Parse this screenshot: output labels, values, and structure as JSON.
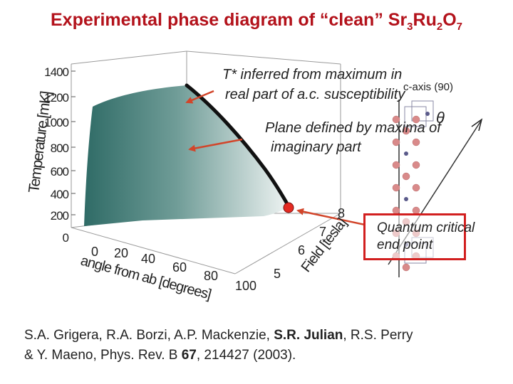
{
  "title": {
    "main": "Experimental phase diagram of “clean” Sr",
    "sub1": "3",
    "mid": "Ru",
    "sub2": "2",
    "mid2": "O",
    "sub3": "7"
  },
  "axes": {
    "temperature_label": "Temperature [mK]",
    "temperature_ticks": [
      "1400",
      "1200",
      "1000",
      "800",
      "600",
      "400",
      "200",
      "0"
    ],
    "angle_label": "angle from ab [degrees]",
    "angle_ticks": [
      "0",
      "20",
      "40",
      "60",
      "80",
      "100"
    ],
    "field_label": "Field [tesla]",
    "field_ticks": [
      "5",
      "6",
      "7",
      "8"
    ]
  },
  "annotations": {
    "tstar_line1": "T* inferred from maximum in",
    "tstar_line2": "real part of a.c. susceptibility",
    "plane_line1": "Plane defined by maxima of",
    "plane_line2": "imaginary part",
    "caxis": "c-axis (90)",
    "theta": "θ",
    "qcp_line1": "Quantum critical",
    "qcp_line2": "end point"
  },
  "citation": {
    "authors_a": "S.A. Grigera, R.A. Borzi, A.P. Mackenzie, ",
    "authors_bold": "S.R. Julian",
    "authors_b": ", R.S. Perry",
    "line2_a": "& Y. Maeno, Phys. Rev. B ",
    "volume": "67",
    "line2_b": ", 214427 (2003)."
  },
  "colors": {
    "title": "#b3121b",
    "arrow": "#d2452a",
    "qcp_box": "#d21f1f",
    "surface_dark": "#2f6b66",
    "surface_light": "#e8efee"
  }
}
